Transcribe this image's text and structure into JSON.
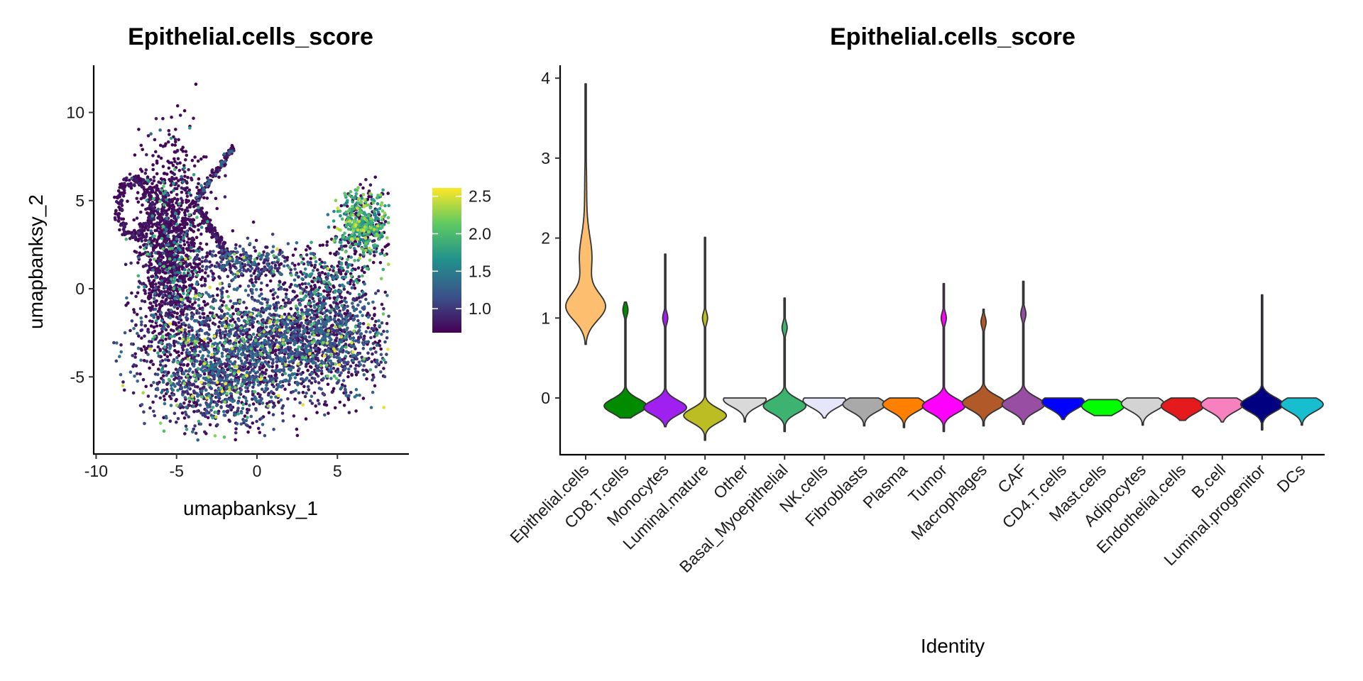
{
  "chart_data": [
    {
      "type": "scatter",
      "title": "Epithelial.cells_score",
      "xlabel": "umapbanksy_1",
      "ylabel": "umapbanksy_2",
      "xlim": [
        -10.2,
        9.3
      ],
      "ylim": [
        -9.3,
        12.7
      ],
      "xticks": [
        "-10",
        "-5",
        "0",
        "5"
      ],
      "yticks": [
        "-5",
        "0",
        "5",
        "10"
      ],
      "grid": false,
      "colorbar": {
        "colormap": "viridis",
        "range": [
          0.68,
          2.61
        ],
        "ticks": [
          "1.0",
          "1.5",
          "2.0",
          "2.5"
        ],
        "placement": "right"
      }
    },
    {
      "type": "violin",
      "title": "Epithelial.cells_score",
      "xlabel": "Identity",
      "ylabel": "",
      "ylim": [
        -0.75,
        4.15
      ],
      "yticks": [
        "0",
        "1",
        "2",
        "3",
        "4"
      ],
      "grid": false,
      "categories": [
        "Epithelial.cells",
        "CD8.T.cells",
        "Monocytes",
        "Luminal.mature",
        "Other",
        "Basal_Myoepithelial",
        "NK.cells",
        "Fibroblasts",
        "Plasma",
        "Tumor",
        "Macrophages",
        "CAF",
        "CD4.T.cells",
        "Mast.cells",
        "Adipocytes",
        "Endothelial.cells",
        "B.cell",
        "Luminal.progenitor",
        "DCs"
      ],
      "colors": [
        "#FDBF6F",
        "#008B00",
        "#A020F0",
        "#BCBD22",
        "#D9D9D9",
        "#3CB371",
        "#E6E6FA",
        "#A9A9A9",
        "#FF7F00",
        "#FF00FF",
        "#B15928",
        "#984EA3",
        "#0000FF",
        "#00FF00",
        "#D3D3D3",
        "#E41A1C",
        "#F781BF",
        "#000080",
        "#17BECF"
      ],
      "series": [
        {
          "min": 0.67,
          "max": 3.93,
          "mode": 1.14,
          "bump": 1.75
        },
        {
          "min": -0.25,
          "max": 1.2,
          "mode": -0.1,
          "bump": 1.1
        },
        {
          "min": -0.36,
          "max": 1.8,
          "mode": -0.12,
          "bump": 1.0
        },
        {
          "min": -0.53,
          "max": 2.01,
          "mode": -0.22,
          "bump": 1.0
        },
        {
          "min": -0.3,
          "max": 0.0,
          "mode": -0.02,
          "bump": null
        },
        {
          "min": -0.42,
          "max": 1.25,
          "mode": -0.1,
          "bump": 0.88
        },
        {
          "min": -0.25,
          "max": 0.0,
          "mode": -0.03,
          "bump": null
        },
        {
          "min": -0.35,
          "max": 0.0,
          "mode": -0.08,
          "bump": null
        },
        {
          "min": -0.37,
          "max": 0.0,
          "mode": -0.08,
          "bump": null
        },
        {
          "min": -0.42,
          "max": 1.43,
          "mode": -0.1,
          "bump": 1.0
        },
        {
          "min": -0.35,
          "max": 1.11,
          "mode": -0.06,
          "bump": 0.95
        },
        {
          "min": -0.33,
          "max": 1.46,
          "mode": -0.08,
          "bump": 1.05
        },
        {
          "min": -0.27,
          "max": 0.0,
          "mode": -0.05,
          "bump": null
        },
        {
          "min": -0.22,
          "max": -0.02,
          "mode": -0.1,
          "bump": null
        },
        {
          "min": -0.34,
          "max": 0.0,
          "mode": -0.07,
          "bump": null
        },
        {
          "min": -0.28,
          "max": 0.0,
          "mode": -0.1,
          "bump": null
        },
        {
          "min": -0.3,
          "max": 0.0,
          "mode": -0.08,
          "bump": null
        },
        {
          "min": -0.4,
          "max": 1.29,
          "mode": -0.08,
          "bump": null
        },
        {
          "min": -0.34,
          "max": 0.0,
          "mode": -0.08,
          "bump": null
        }
      ]
    }
  ]
}
